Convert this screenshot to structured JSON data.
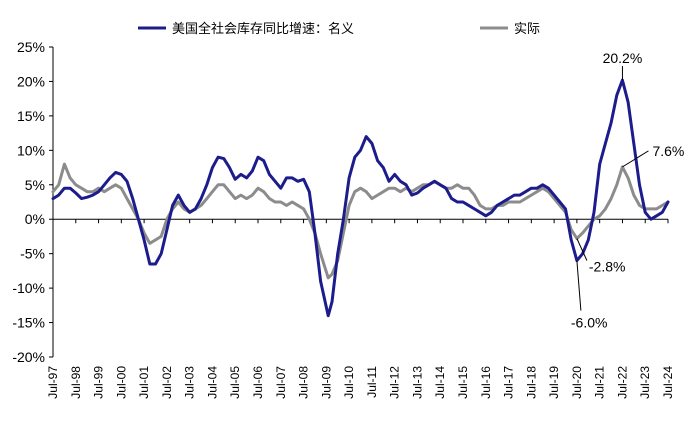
{
  "chart_data": {
    "type": "line",
    "title": "",
    "xlabel": "",
    "ylabel": "",
    "ylim": [
      -20,
      25
    ],
    "y_ticks": [
      25,
      20,
      15,
      10,
      5,
      0,
      -5,
      -10,
      -15,
      -20
    ],
    "y_tick_labels": [
      "25%",
      "20%",
      "15%",
      "10%",
      "5%",
      "0%",
      "-5%",
      "-10%",
      "-15%",
      "-20%"
    ],
    "negative_tick_color": "#e00000",
    "x_tick_labels": [
      "Jul-97",
      "Jul-98",
      "Jul-99",
      "Jul-00",
      "Jul-01",
      "Jul-02",
      "Jul-03",
      "Jul-04",
      "Jul-05",
      "Jul-06",
      "Jul-07",
      "Jul-08",
      "Jul-09",
      "Jul-10",
      "Jul-11",
      "Jul-12",
      "Jul-13",
      "Jul-14",
      "Jul-15",
      "Jul-16",
      "Jul-17",
      "Jul-18",
      "Jul-19",
      "Jul-20",
      "Jul-21",
      "Jul-22",
      "Jul-23",
      "Jul-24"
    ],
    "x_range": [
      "1997-07",
      "2024-07"
    ],
    "grid": false,
    "legend_position": "top-center",
    "series": [
      {
        "name": "美国全社会库存同比增速：名义",
        "color": "#1c1c8c",
        "points": [
          [
            "1997-07",
            3.0
          ],
          [
            "1997-10",
            3.5
          ],
          [
            "1998-01",
            4.5
          ],
          [
            "1998-04",
            4.5
          ],
          [
            "1998-07",
            3.8
          ],
          [
            "1998-10",
            3.0
          ],
          [
            "1999-01",
            3.2
          ],
          [
            "1999-04",
            3.5
          ],
          [
            "1999-07",
            4.0
          ],
          [
            "1999-10",
            5.0
          ],
          [
            "2000-01",
            6.0
          ],
          [
            "2000-04",
            6.8
          ],
          [
            "2000-07",
            6.5
          ],
          [
            "2000-10",
            5.5
          ],
          [
            "2001-01",
            3.0
          ],
          [
            "2001-04",
            0.0
          ],
          [
            "2001-07",
            -3.0
          ],
          [
            "2001-10",
            -6.5
          ],
          [
            "2002-01",
            -6.5
          ],
          [
            "2002-04",
            -5.0
          ],
          [
            "2002-07",
            -1.5
          ],
          [
            "2002-10",
            2.0
          ],
          [
            "2003-01",
            3.5
          ],
          [
            "2003-04",
            2.0
          ],
          [
            "2003-07",
            1.0
          ],
          [
            "2003-10",
            1.5
          ],
          [
            "2004-01",
            3.0
          ],
          [
            "2004-04",
            5.0
          ],
          [
            "2004-07",
            7.5
          ],
          [
            "2004-10",
            9.0
          ],
          [
            "2005-01",
            8.8
          ],
          [
            "2005-04",
            7.5
          ],
          [
            "2005-07",
            5.8
          ],
          [
            "2005-10",
            6.5
          ],
          [
            "2006-01",
            6.0
          ],
          [
            "2006-04",
            7.0
          ],
          [
            "2006-07",
            9.0
          ],
          [
            "2006-10",
            8.5
          ],
          [
            "2007-01",
            6.5
          ],
          [
            "2007-04",
            5.5
          ],
          [
            "2007-07",
            4.5
          ],
          [
            "2007-10",
            6.0
          ],
          [
            "2008-01",
            6.0
          ],
          [
            "2008-04",
            5.5
          ],
          [
            "2008-07",
            5.8
          ],
          [
            "2008-10",
            4.0
          ],
          [
            "2009-01",
            -2.0
          ],
          [
            "2009-04",
            -9.0
          ],
          [
            "2009-08",
            -14.0
          ],
          [
            "2009-10",
            -12.0
          ],
          [
            "2010-01",
            -5.0
          ],
          [
            "2010-04",
            0.0
          ],
          [
            "2010-07",
            6.0
          ],
          [
            "2010-10",
            9.0
          ],
          [
            "2011-01",
            10.0
          ],
          [
            "2011-04",
            12.0
          ],
          [
            "2011-07",
            11.0
          ],
          [
            "2011-10",
            8.5
          ],
          [
            "2012-01",
            7.5
          ],
          [
            "2012-04",
            5.5
          ],
          [
            "2012-07",
            6.5
          ],
          [
            "2012-10",
            5.5
          ],
          [
            "2013-01",
            5.0
          ],
          [
            "2013-04",
            3.5
          ],
          [
            "2013-07",
            3.8
          ],
          [
            "2013-10",
            4.5
          ],
          [
            "2014-01",
            5.0
          ],
          [
            "2014-04",
            5.5
          ],
          [
            "2014-07",
            5.0
          ],
          [
            "2014-10",
            4.5
          ],
          [
            "2015-01",
            3.0
          ],
          [
            "2015-04",
            2.5
          ],
          [
            "2015-07",
            2.5
          ],
          [
            "2015-10",
            2.0
          ],
          [
            "2016-01",
            1.5
          ],
          [
            "2016-04",
            1.0
          ],
          [
            "2016-07",
            0.5
          ],
          [
            "2016-10",
            1.0
          ],
          [
            "2017-01",
            2.0
          ],
          [
            "2017-04",
            2.5
          ],
          [
            "2017-07",
            3.0
          ],
          [
            "2017-10",
            3.5
          ],
          [
            "2018-01",
            3.5
          ],
          [
            "2018-04",
            4.0
          ],
          [
            "2018-07",
            4.5
          ],
          [
            "2018-10",
            4.5
          ],
          [
            "2019-01",
            5.0
          ],
          [
            "2019-04",
            4.5
          ],
          [
            "2019-07",
            3.5
          ],
          [
            "2019-10",
            2.5
          ],
          [
            "2020-01",
            1.5
          ],
          [
            "2020-04",
            -3.0
          ],
          [
            "2020-07",
            -6.0
          ],
          [
            "2020-10",
            -5.0
          ],
          [
            "2021-01",
            -3.0
          ],
          [
            "2021-04",
            1.0
          ],
          [
            "2021-07",
            8.0
          ],
          [
            "2021-10",
            11.0
          ],
          [
            "2022-01",
            14.0
          ],
          [
            "2022-04",
            18.0
          ],
          [
            "2022-07",
            20.2
          ],
          [
            "2022-10",
            17.0
          ],
          [
            "2023-01",
            11.0
          ],
          [
            "2023-04",
            5.0
          ],
          [
            "2023-07",
            1.0
          ],
          [
            "2023-10",
            0.0
          ],
          [
            "2024-01",
            0.5
          ],
          [
            "2024-04",
            1.0
          ],
          [
            "2024-07",
            2.5
          ]
        ]
      },
      {
        "name": "实际",
        "color": "#8c8c8c",
        "points": [
          [
            "1997-07",
            4.0
          ],
          [
            "1997-10",
            5.0
          ],
          [
            "1998-01",
            8.0
          ],
          [
            "1998-04",
            6.0
          ],
          [
            "1998-07",
            5.0
          ],
          [
            "1998-10",
            4.5
          ],
          [
            "1999-01",
            4.0
          ],
          [
            "1999-04",
            4.0
          ],
          [
            "1999-07",
            4.5
          ],
          [
            "1999-10",
            4.0
          ],
          [
            "2000-01",
            4.5
          ],
          [
            "2000-04",
            5.0
          ],
          [
            "2000-07",
            4.5
          ],
          [
            "2000-10",
            3.0
          ],
          [
            "2001-01",
            1.5
          ],
          [
            "2001-04",
            0.0
          ],
          [
            "2001-07",
            -2.0
          ],
          [
            "2001-10",
            -3.5
          ],
          [
            "2002-01",
            -3.0
          ],
          [
            "2002-04",
            -2.5
          ],
          [
            "2002-07",
            0.0
          ],
          [
            "2002-10",
            1.5
          ],
          [
            "2003-01",
            2.5
          ],
          [
            "2003-04",
            1.5
          ],
          [
            "2003-07",
            1.0
          ],
          [
            "2003-10",
            1.5
          ],
          [
            "2004-01",
            2.0
          ],
          [
            "2004-04",
            3.0
          ],
          [
            "2004-07",
            4.0
          ],
          [
            "2004-10",
            5.0
          ],
          [
            "2005-01",
            5.0
          ],
          [
            "2005-04",
            4.0
          ],
          [
            "2005-07",
            3.0
          ],
          [
            "2005-10",
            3.5
          ],
          [
            "2006-01",
            3.0
          ],
          [
            "2006-04",
            3.5
          ],
          [
            "2006-07",
            4.5
          ],
          [
            "2006-10",
            4.0
          ],
          [
            "2007-01",
            3.0
          ],
          [
            "2007-04",
            2.5
          ],
          [
            "2007-07",
            2.5
          ],
          [
            "2007-10",
            2.0
          ],
          [
            "2008-01",
            2.5
          ],
          [
            "2008-04",
            2.0
          ],
          [
            "2008-07",
            1.5
          ],
          [
            "2008-10",
            0.0
          ],
          [
            "2009-01",
            -2.0
          ],
          [
            "2009-04",
            -5.0
          ],
          [
            "2009-08",
            -8.5
          ],
          [
            "2009-10",
            -8.0
          ],
          [
            "2010-01",
            -6.0
          ],
          [
            "2010-04",
            -2.0
          ],
          [
            "2010-07",
            2.0
          ],
          [
            "2010-10",
            4.0
          ],
          [
            "2011-01",
            4.5
          ],
          [
            "2011-04",
            4.0
          ],
          [
            "2011-07",
            3.0
          ],
          [
            "2011-10",
            3.5
          ],
          [
            "2012-01",
            4.0
          ],
          [
            "2012-04",
            4.5
          ],
          [
            "2012-07",
            4.5
          ],
          [
            "2012-10",
            4.0
          ],
          [
            "2013-01",
            4.5
          ],
          [
            "2013-04",
            4.0
          ],
          [
            "2013-07",
            4.5
          ],
          [
            "2013-10",
            5.0
          ],
          [
            "2014-01",
            5.0
          ],
          [
            "2014-04",
            5.5
          ],
          [
            "2014-07",
            5.0
          ],
          [
            "2014-10",
            4.5
          ],
          [
            "2015-01",
            4.5
          ],
          [
            "2015-04",
            5.0
          ],
          [
            "2015-07",
            4.5
          ],
          [
            "2015-10",
            4.5
          ],
          [
            "2016-01",
            3.5
          ],
          [
            "2016-04",
            2.0
          ],
          [
            "2016-07",
            1.5
          ],
          [
            "2016-10",
            1.5
          ],
          [
            "2017-01",
            2.0
          ],
          [
            "2017-04",
            2.0
          ],
          [
            "2017-07",
            2.5
          ],
          [
            "2017-10",
            2.5
          ],
          [
            "2018-01",
            2.5
          ],
          [
            "2018-04",
            3.0
          ],
          [
            "2018-07",
            3.5
          ],
          [
            "2018-10",
            4.0
          ],
          [
            "2019-01",
            4.5
          ],
          [
            "2019-04",
            4.0
          ],
          [
            "2019-07",
            3.0
          ],
          [
            "2019-10",
            2.0
          ],
          [
            "2020-01",
            1.0
          ],
          [
            "2020-04",
            -1.5
          ],
          [
            "2020-07",
            -2.8
          ],
          [
            "2020-10",
            -2.0
          ],
          [
            "2021-01",
            -1.0
          ],
          [
            "2021-04",
            0.0
          ],
          [
            "2021-07",
            0.5
          ],
          [
            "2021-10",
            1.5
          ],
          [
            "2022-01",
            3.0
          ],
          [
            "2022-04",
            5.0
          ],
          [
            "2022-07",
            7.6
          ],
          [
            "2022-10",
            6.0
          ],
          [
            "2023-01",
            3.5
          ],
          [
            "2023-04",
            2.0
          ],
          [
            "2023-07",
            1.5
          ],
          [
            "2023-10",
            1.5
          ],
          [
            "2024-01",
            1.5
          ],
          [
            "2024-04",
            2.0
          ],
          [
            "2024-07",
            2.5
          ]
        ]
      }
    ],
    "annotations": [
      {
        "text": "20.2%",
        "series": 0,
        "x": "2022-07",
        "y": 20.2
      },
      {
        "text": "7.6%",
        "series": 1,
        "x": "2022-07",
        "y": 7.6
      },
      {
        "text": "-2.8%",
        "series": 1,
        "x": "2020-07",
        "y": -2.8
      },
      {
        "text": "-6.0%",
        "series": 0,
        "x": "2020-07",
        "y": -6.0
      }
    ]
  }
}
